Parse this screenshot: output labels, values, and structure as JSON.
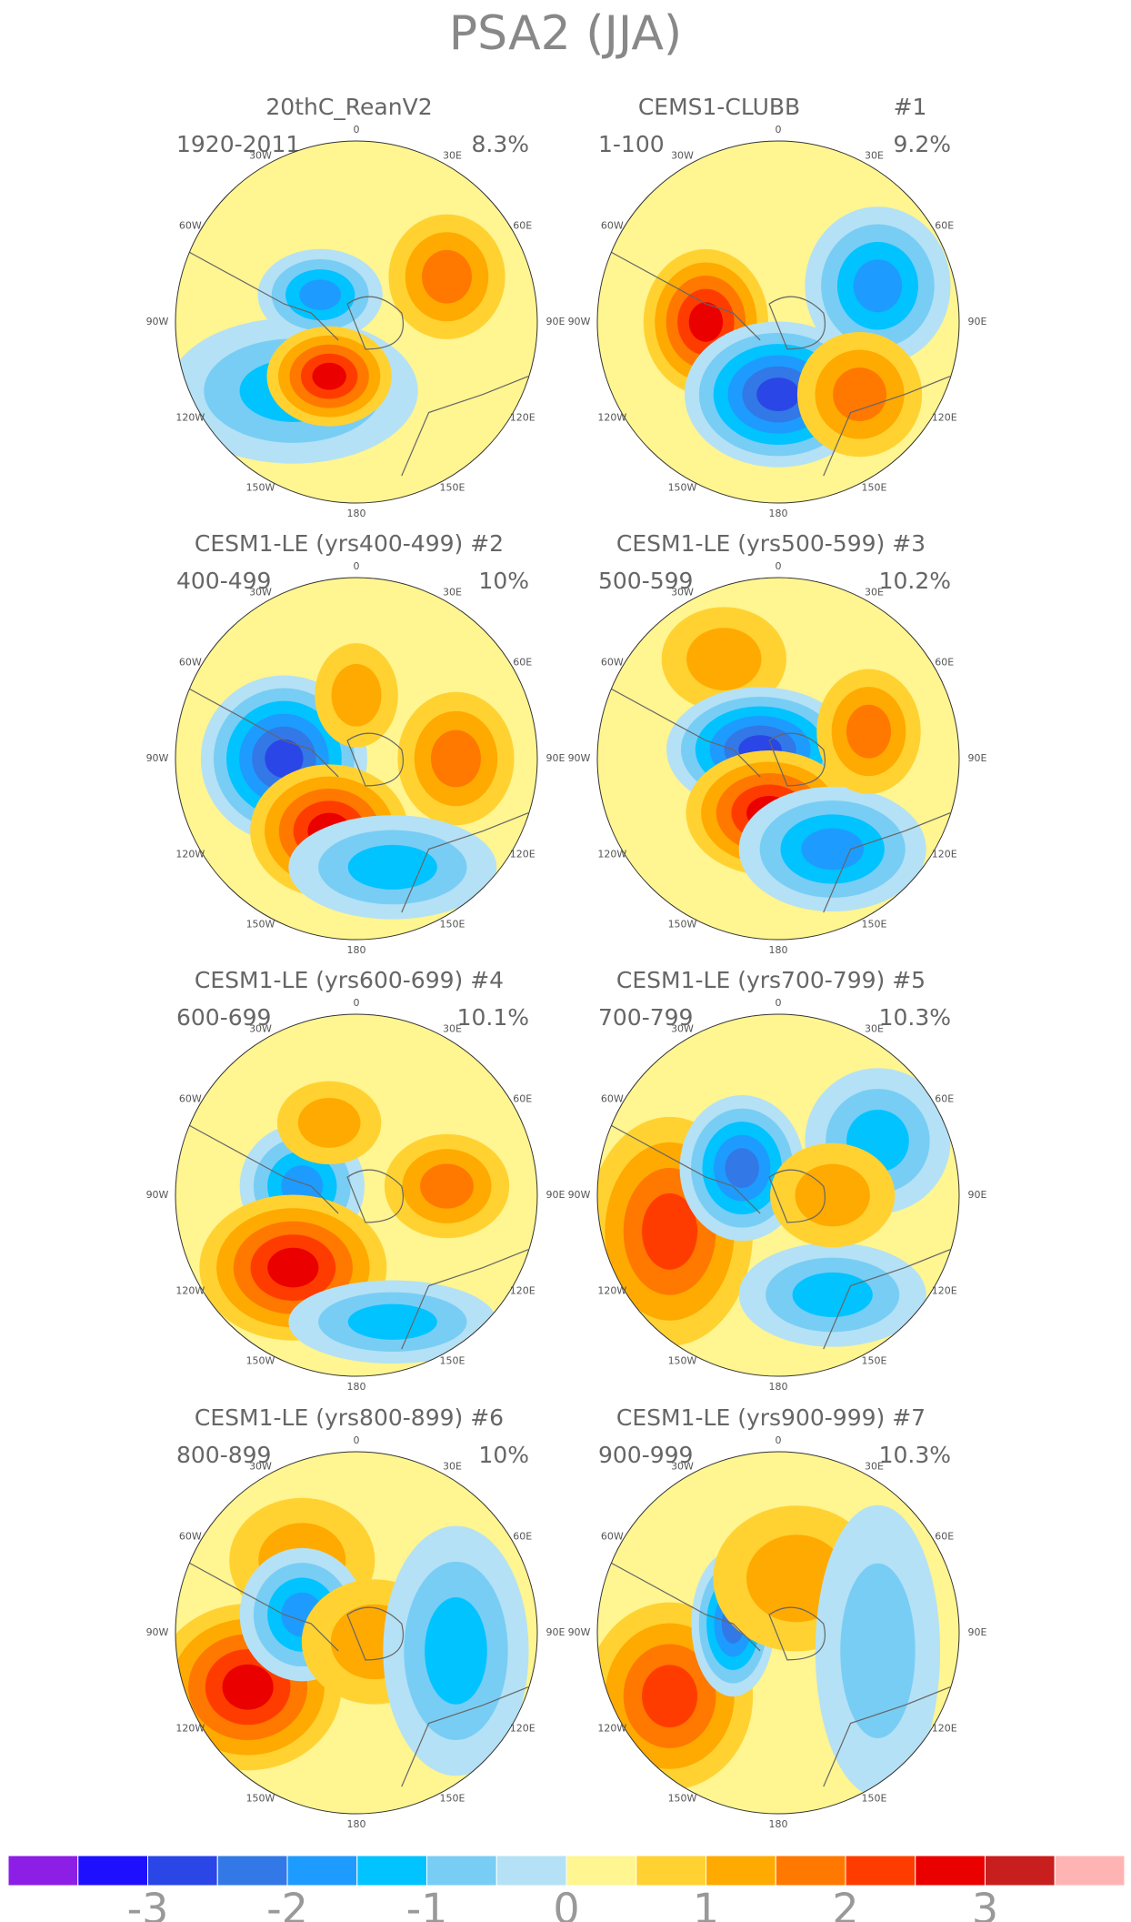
{
  "title": "PSA2 (JJA)",
  "lon_labels": [
    "0",
    "30E",
    "60E",
    "90E",
    "120E",
    "150E",
    "180",
    "150W",
    "120W",
    "90W",
    "60W",
    "30W"
  ],
  "panels": [
    {
      "title": "20thC_ReanV2",
      "period": "1920-2011",
      "variance": "8.3%"
    },
    {
      "title": "CEMS1-CLUBB",
      "tag": "#1",
      "period": "1-100",
      "variance": "9.2%"
    },
    {
      "title": "CESM1-LE (yrs400-499) #2",
      "period": "400-499",
      "variance": "10%"
    },
    {
      "title": "CESM1-LE (yrs500-599) #3",
      "period": "500-599",
      "variance": "10.2%"
    },
    {
      "title": "CESM1-LE (yrs600-699) #4",
      "period": "600-699",
      "variance": "10.1%"
    },
    {
      "title": "CESM1-LE (yrs700-799) #5",
      "period": "700-799",
      "variance": "10.3%"
    },
    {
      "title": "CESM1-LE (yrs800-899) #6",
      "period": "800-899",
      "variance": "10%"
    },
    {
      "title": "CESM1-LE (yrs900-999) #7",
      "period": "900-999",
      "variance": "10.3%"
    }
  ],
  "colorbar": {
    "colors": [
      "#8c1ee6",
      "#1e0fff",
      "#2a46e6",
      "#3278e6",
      "#1e9bff",
      "#00c3ff",
      "#78cdf5",
      "#b4e1f5",
      "#fff591",
      "#ffd232",
      "#ffaa00",
      "#ff7800",
      "#ff3c00",
      "#eb0000",
      "#c81e1e",
      "#ffb4b4"
    ],
    "labels": [
      -3,
      -2,
      -1,
      0,
      1,
      2,
      3
    ]
  }
}
